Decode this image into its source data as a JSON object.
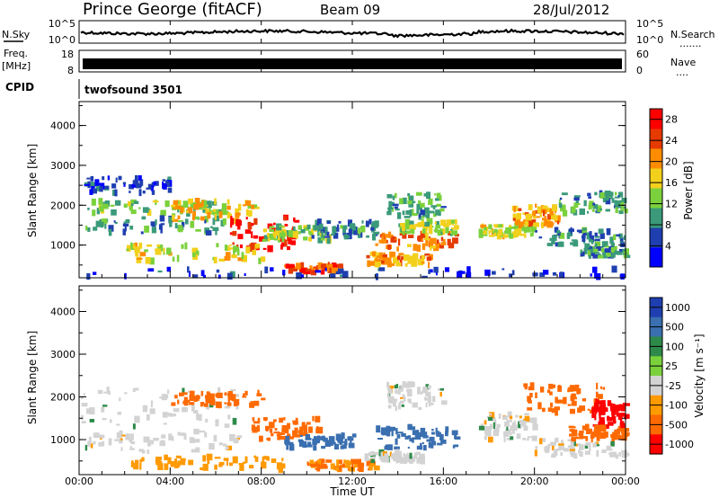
{
  "header": {
    "station": "Prince George (fitACF)",
    "beam": "Beam 09",
    "date": "28/Jul/2012"
  },
  "nsky_panel": {
    "left_label": "N.Sky",
    "left_ticks": [
      "10^5",
      "10^0"
    ],
    "right_ticks": [
      "10^5",
      "10^0"
    ],
    "right_label": "N.Search",
    "right_dots": "......."
  },
  "freq_panel": {
    "label_top": "Freq.",
    "label_bottom": "[MHz]",
    "left_ticks": [
      "18",
      "8"
    ],
    "right_ticks": [
      "60",
      "0"
    ],
    "right_label": "Nave",
    "right_dots": "...."
  },
  "cpid": {
    "label": "CPID",
    "value": "twofsound 3501"
  },
  "power_panel": {
    "ylabel": "Slant Range [km]",
    "yticks": [
      "4000",
      "3000",
      "2000",
      "1000"
    ],
    "colorbar_label": "Power [dB]",
    "colorbar_ticks": [
      "28",
      "24",
      "20",
      "16",
      "12",
      "8",
      "4"
    ],
    "colors": [
      "#0000ff",
      "#1f3fb0",
      "#3a9a7a",
      "#7bd13c",
      "#f2d01c",
      "#ff8c00",
      "#e53a00",
      "#ff0000"
    ]
  },
  "velocity_panel": {
    "ylabel": "Slant Range [km]",
    "yticks": [
      "4000",
      "3000",
      "2000",
      "1000"
    ],
    "colorbar_label": "Velocity [m s⁻¹]",
    "colorbar_ticks": [
      "1000",
      "500",
      "100",
      "25",
      "-25",
      "-100",
      "-500",
      "-1000"
    ],
    "colors": [
      "#1f3fb0",
      "#3a6fb0",
      "#2e8a4a",
      "#7bd13c",
      "#d3d3d3",
      "#ff9a00",
      "#ff6a00",
      "#ff0000"
    ]
  },
  "xaxis": {
    "label": "Time UT",
    "ticks": [
      "00:00",
      "04:00",
      "08:00",
      "12:00",
      "16:00",
      "20:00",
      "00:00"
    ]
  },
  "chart_data": [
    {
      "type": "heatmap",
      "quantity": "Power",
      "x_range_hours": [
        0,
        24
      ],
      "ylim_km": [
        180,
        4600
      ],
      "colorbar_range": [
        0,
        30
      ],
      "blobs": [
        {
          "t": [
            0.2,
            6.5
          ],
          "r": [
            1800,
            2100
          ],
          "v": 12
        },
        {
          "t": [
            0.2,
            6.5
          ],
          "r": [
            1300,
            1700
          ],
          "v": 10
        },
        {
          "t": [
            0.2,
            4.0
          ],
          "r": [
            2300,
            2700
          ],
          "v": 5
        },
        {
          "t": [
            4.0,
            8.0
          ],
          "r": [
            1600,
            2100
          ],
          "v": 18
        },
        {
          "t": [
            6.5,
            9.5
          ],
          "r": [
            900,
            1700
          ],
          "v": 28
        },
        {
          "t": [
            8.0,
            11.0
          ],
          "r": [
            1100,
            1500
          ],
          "v": 14
        },
        {
          "t": [
            2.0,
            8.0
          ],
          "r": [
            600,
            1000
          ],
          "v": 16
        },
        {
          "t": [
            9.0,
            11.5
          ],
          "r": [
            300,
            500
          ],
          "v": 24
        },
        {
          "t": [
            10.0,
            13.0
          ],
          "r": [
            1200,
            1600
          ],
          "v": 8
        },
        {
          "t": [
            12.5,
            15.5
          ],
          "r": [
            500,
            800
          ],
          "v": 20
        },
        {
          "t": [
            13.0,
            16.5
          ],
          "r": [
            900,
            1300
          ],
          "v": 22
        },
        {
          "t": [
            13.5,
            16.0
          ],
          "r": [
            1700,
            2300
          ],
          "v": 10
        },
        {
          "t": [
            14.0,
            16.5
          ],
          "r": [
            1300,
            1600
          ],
          "v": 14
        },
        {
          "t": [
            17.5,
            20.0
          ],
          "r": [
            1200,
            1500
          ],
          "v": 16
        },
        {
          "t": [
            19.0,
            21.0
          ],
          "r": [
            1500,
            2000
          ],
          "v": 20
        },
        {
          "t": [
            20.0,
            24.0
          ],
          "r": [
            1000,
            1400
          ],
          "v": 8
        },
        {
          "t": [
            21.0,
            24.0
          ],
          "r": [
            1800,
            2300
          ],
          "v": 10
        },
        {
          "t": [
            22.0,
            24.0
          ],
          "r": [
            700,
            1000
          ],
          "v": 10
        },
        {
          "t": [
            0.0,
            24.0
          ],
          "r": [
            200,
            400
          ],
          "v": 4
        }
      ]
    },
    {
      "type": "heatmap",
      "quantity": "Velocity",
      "x_range_hours": [
        0,
        24
      ],
      "ylim_km": [
        180,
        4600
      ],
      "colorbar_range": [
        -1000,
        1000
      ],
      "blobs": [
        {
          "t": [
            0.0,
            7.0
          ],
          "r": [
            1300,
            2200
          ],
          "v": 0
        },
        {
          "t": [
            0.0,
            7.0
          ],
          "r": [
            700,
            1200
          ],
          "v": 0
        },
        {
          "t": [
            4.0,
            8.0
          ],
          "r": [
            1800,
            2100
          ],
          "v": -300
        },
        {
          "t": [
            7.5,
            10.5
          ],
          "r": [
            1000,
            1500
          ],
          "v": -400
        },
        {
          "t": [
            9.0,
            12.0
          ],
          "r": [
            800,
            1100
          ],
          "v": 300
        },
        {
          "t": [
            2.0,
            9.0
          ],
          "r": [
            300,
            600
          ],
          "v": -60
        },
        {
          "t": [
            10.0,
            13.0
          ],
          "r": [
            300,
            500
          ],
          "v": -100
        },
        {
          "t": [
            13.0,
            16.5
          ],
          "r": [
            800,
            1300
          ],
          "v": 350
        },
        {
          "t": [
            13.5,
            16.0
          ],
          "r": [
            1700,
            2300
          ],
          "v": 0
        },
        {
          "t": [
            12.5,
            15.0
          ],
          "r": [
            500,
            700
          ],
          "v": 0
        },
        {
          "t": [
            17.5,
            20.0
          ],
          "r": [
            1000,
            1600
          ],
          "v": 0
        },
        {
          "t": [
            19.5,
            23.0
          ],
          "r": [
            1600,
            2300
          ],
          "v": -450
        },
        {
          "t": [
            22.5,
            24.0
          ],
          "r": [
            1300,
            1900
          ],
          "v": -900
        },
        {
          "t": [
            20.0,
            24.0
          ],
          "r": [
            600,
            1000
          ],
          "v": 0
        },
        {
          "t": [
            21.5,
            24.0
          ],
          "r": [
            1000,
            1300
          ],
          "v": -300
        }
      ]
    }
  ]
}
